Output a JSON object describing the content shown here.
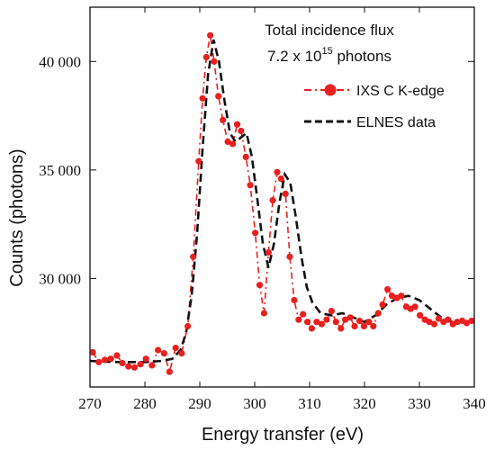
{
  "chart_data": {
    "type": "line",
    "title": "",
    "xlabel": "Energy transfer (eV)",
    "ylabel": "Counts (photons)",
    "xlim": [
      270,
      340
    ],
    "ylim": [
      25000,
      42500
    ],
    "xticks": [
      270,
      280,
      290,
      300,
      310,
      320,
      330,
      340
    ],
    "xtick_labels": [
      "270",
      "280",
      "290",
      "300",
      "310",
      "320",
      "330",
      "340"
    ],
    "yticks": [
      30000,
      35000,
      40000
    ],
    "ytick_labels": [
      "30 000",
      "35 000",
      "40 000"
    ],
    "annotation": {
      "line1": "Total incidence flux",
      "line2_prefix": "7.2 x 10",
      "line2_exp": "15",
      "line2_suffix": " photons"
    },
    "legend_position": "top-right",
    "series": [
      {
        "name": "IXS C K-edge",
        "style": "dashed line with dot markers",
        "color": "#e8201f",
        "x": [
          270.5,
          271.6,
          272.7,
          273.8,
          274.9,
          275.9,
          277.0,
          278.1,
          279.2,
          280.2,
          281.3,
          282.4,
          283.5,
          284.5,
          285.6,
          286.7,
          287.8,
          288.8,
          289.8,
          290.5,
          291.2,
          291.9,
          292.6,
          293.4,
          294.2,
          295.1,
          296.0,
          296.8,
          297.5,
          298.4,
          299.2,
          300.1,
          300.9,
          301.7,
          302.5,
          303.3,
          304.1,
          304.8,
          305.6,
          306.4,
          307.2,
          308.0,
          308.8,
          309.6,
          310.4,
          311.3,
          312.2,
          313.1,
          314.0,
          314.8,
          315.7,
          316.5,
          317.4,
          318.2,
          319.1,
          319.9,
          320.8,
          321.6,
          322.5,
          323.3,
          324.2,
          325.0,
          325.9,
          326.7,
          327.6,
          328.4,
          329.2,
          330.1,
          331.0,
          331.8,
          332.7,
          333.5,
          334.4,
          335.2,
          336.1,
          336.9,
          337.8,
          338.6,
          339.5
        ],
        "y": [
          26600,
          26150,
          26250,
          26300,
          26450,
          26100,
          25950,
          25900,
          26050,
          26300,
          26000,
          26700,
          26550,
          25700,
          26800,
          26550,
          27800,
          31000,
          35400,
          38300,
          40200,
          41200,
          40000,
          38400,
          37300,
          36300,
          36200,
          37100,
          36800,
          35600,
          34300,
          32100,
          29700,
          28400,
          31200,
          33600,
          34900,
          34600,
          33900,
          31000,
          29000,
          28100,
          28350,
          28000,
          27700,
          28000,
          27900,
          28100,
          28500,
          28000,
          27700,
          28100,
          28200,
          27800,
          28050,
          27800,
          28000,
          27800,
          28400,
          28800,
          29500,
          29200,
          29100,
          29200,
          28700,
          28600,
          28700,
          28300,
          28100,
          28000,
          27900,
          28150,
          28000,
          28100,
          27900,
          28000,
          28050,
          27950,
          28050
        ]
      },
      {
        "name": "ELNES data",
        "style": "dashed line",
        "color": "#111111",
        "x": [
          270,
          275,
          280,
          283,
          285,
          286.5,
          287.5,
          288.5,
          289.5,
          290.5,
          291.5,
          292.5,
          293.5,
          294.5,
          295.5,
          296.5,
          297.5,
          298.5,
          299.5,
          300.5,
          301.5,
          302.5,
          303.5,
          304.5,
          305.5,
          306.5,
          307.5,
          308.5,
          309.5,
          310.5,
          312,
          314,
          316,
          318,
          320,
          322,
          324,
          326,
          328,
          330,
          332,
          334,
          336,
          338,
          340
        ],
        "y": [
          26200,
          26150,
          26150,
          26200,
          26300,
          26700,
          27500,
          29200,
          32000,
          36000,
          39400,
          41000,
          40000,
          38200,
          36700,
          36300,
          36500,
          36700,
          35600,
          33600,
          31600,
          30500,
          31600,
          33500,
          34800,
          34400,
          32800,
          31000,
          29600,
          28900,
          28400,
          28300,
          28400,
          28200,
          28000,
          28300,
          28800,
          29100,
          29200,
          29000,
          28600,
          28200,
          28000,
          28000,
          28100
        ]
      }
    ]
  }
}
